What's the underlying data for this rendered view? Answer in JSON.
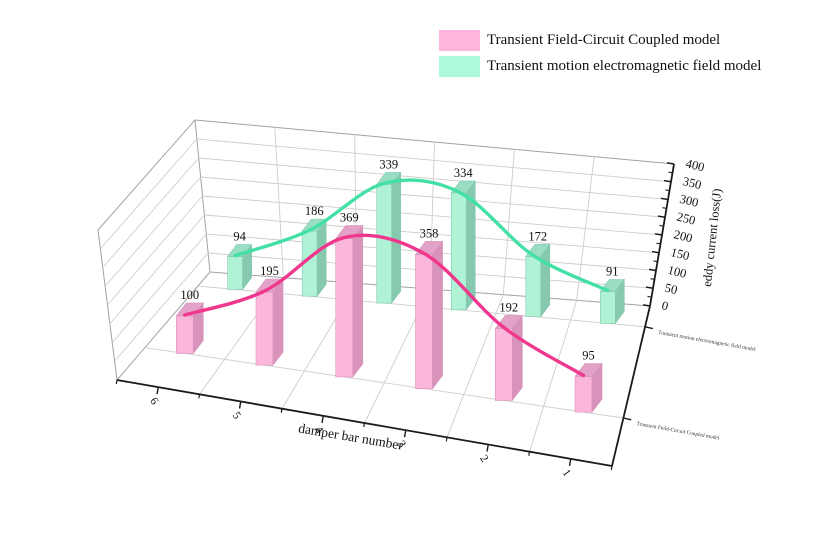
{
  "legend": {
    "items": [
      {
        "label": "Transient Field-Circuit Coupled model",
        "color": "#ffb5dc"
      },
      {
        "label": "Transient motion electromagnetic field model",
        "color": "#aef9dc"
      }
    ]
  },
  "chart_data": {
    "type": "bar",
    "projection": "3d",
    "title": "",
    "xlabel": "damper bar number",
    "zlabel": "eddy current loss(J)",
    "categories": [
      "6",
      "5",
      "4",
      "3",
      "2",
      "1"
    ],
    "zlim": [
      0,
      400
    ],
    "zticks": [
      0,
      50,
      100,
      150,
      200,
      250,
      300,
      350,
      400
    ],
    "grid": true,
    "legend_position": "top-right",
    "value_labels_shown": true,
    "series": [
      {
        "name": "Transient Field-Circuit Coupled model",
        "row": "front",
        "values": [
          100,
          195,
          369,
          358,
          192,
          95
        ],
        "bar_color": "#fbb7db",
        "bar_side_color": "#d893ba",
        "bar_top_color": "#e3a3c8",
        "line_color": "#f0378e"
      },
      {
        "name": "Transient motion electromagnetic field model",
        "row": "back",
        "values": [
          94,
          186,
          339,
          334,
          172,
          91
        ],
        "bar_color": "#aff2d6",
        "bar_side_color": "#86c9ae",
        "bar_top_color": "#99dec2",
        "line_color": "#43e0a5"
      }
    ]
  }
}
